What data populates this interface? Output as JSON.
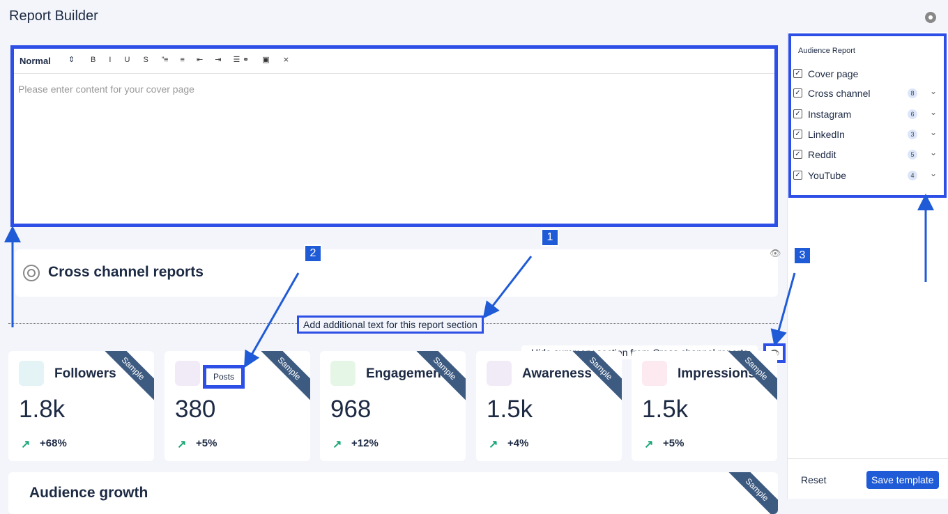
{
  "header": {
    "title": "Report Builder"
  },
  "editor": {
    "format": "Normal",
    "placeholder": "Please enter content for your cover page"
  },
  "sidebar": {
    "title": "Audience Report",
    "items": [
      {
        "label": "Cover page"
      },
      {
        "label": "Cross channel",
        "count": 8
      },
      {
        "label": "Instagram",
        "count": 6
      },
      {
        "label": "LinkedIn",
        "count": 3
      },
      {
        "label": "Reddit",
        "count": 5
      },
      {
        "label": "YouTube",
        "count": 4
      }
    ],
    "buttons": {
      "reset": "Reset",
      "save": "Save template"
    }
  },
  "callouts": [
    "1",
    "2",
    "3"
  ],
  "section": {
    "title": "Cross channel reports",
    "additional_text": "Add additional text for this report section",
    "tooltip": "Hide summary section from Cross channel reports"
  },
  "cards": [
    {
      "label": "Followers",
      "value": "1.8k",
      "change": "+68%",
      "ribbon": "Sample"
    },
    {
      "label": "Posts",
      "value": "380",
      "change": "+5%",
      "ribbon": "Sample"
    },
    {
      "label": "Engagement",
      "value": "968",
      "change": "+12%",
      "ribbon": "Sample"
    },
    {
      "label": "Awareness",
      "value": "1.5k",
      "change": "+4%",
      "ribbon": "Sample"
    },
    {
      "label": "Impressions",
      "value": "1.5k",
      "change": "+5%",
      "ribbon": "Sample"
    }
  ],
  "next_section": {
    "title": "Audience growth",
    "ribbon": "Sample"
  }
}
